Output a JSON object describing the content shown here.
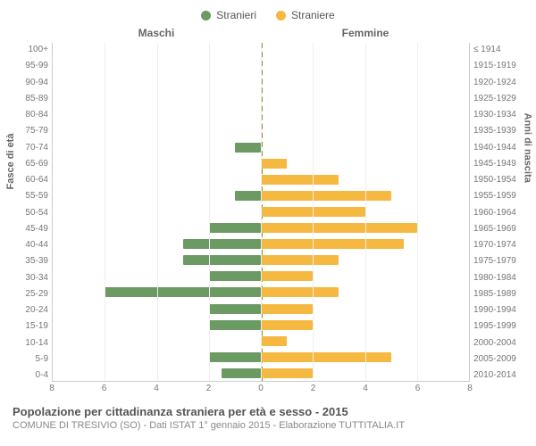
{
  "legend": {
    "m_label": "Stranieri",
    "f_label": "Straniere"
  },
  "colors": {
    "m": "#6b9a62",
    "f": "#f5b840",
    "grid": "#eeeeee",
    "centerline": "#9a8b3a",
    "bg": "#ffffff"
  },
  "headers": {
    "left": "Maschi",
    "right": "Femmine"
  },
  "ylabels": {
    "left": "Fasce di età",
    "right": "Anni di nascita"
  },
  "xaxis": {
    "max": 8,
    "ticks": [
      8,
      6,
      4,
      2,
      0,
      2,
      4,
      6,
      8
    ]
  },
  "bands": [
    {
      "age": "100+",
      "birth": "≤ 1914",
      "m": 0,
      "f": 0
    },
    {
      "age": "95-99",
      "birth": "1915-1919",
      "m": 0,
      "f": 0
    },
    {
      "age": "90-94",
      "birth": "1920-1924",
      "m": 0,
      "f": 0
    },
    {
      "age": "85-89",
      "birth": "1925-1929",
      "m": 0,
      "f": 0
    },
    {
      "age": "80-84",
      "birth": "1930-1934",
      "m": 0,
      "f": 0
    },
    {
      "age": "75-79",
      "birth": "1935-1939",
      "m": 0,
      "f": 0
    },
    {
      "age": "70-74",
      "birth": "1940-1944",
      "m": 1,
      "f": 0
    },
    {
      "age": "65-69",
      "birth": "1945-1949",
      "m": 0,
      "f": 1
    },
    {
      "age": "60-64",
      "birth": "1950-1954",
      "m": 0,
      "f": 3
    },
    {
      "age": "55-59",
      "birth": "1955-1959",
      "m": 1,
      "f": 5
    },
    {
      "age": "50-54",
      "birth": "1960-1964",
      "m": 0,
      "f": 4
    },
    {
      "age": "45-49",
      "birth": "1965-1969",
      "m": 2,
      "f": 6
    },
    {
      "age": "40-44",
      "birth": "1970-1974",
      "m": 3,
      "f": 5.5
    },
    {
      "age": "35-39",
      "birth": "1975-1979",
      "m": 3,
      "f": 3
    },
    {
      "age": "30-34",
      "birth": "1980-1984",
      "m": 2,
      "f": 2
    },
    {
      "age": "25-29",
      "birth": "1985-1989",
      "m": 6,
      "f": 3
    },
    {
      "age": "20-24",
      "birth": "1990-1994",
      "m": 2,
      "f": 2
    },
    {
      "age": "15-19",
      "birth": "1995-1999",
      "m": 2,
      "f": 2
    },
    {
      "age": "10-14",
      "birth": "2000-2004",
      "m": 0,
      "f": 1
    },
    {
      "age": "5-9",
      "birth": "2005-2009",
      "m": 2,
      "f": 5
    },
    {
      "age": "0-4",
      "birth": "2010-2014",
      "m": 1.5,
      "f": 2
    }
  ],
  "caption": {
    "title": "Popolazione per cittadinanza straniera per età e sesso - 2015",
    "sub": "COMUNE DI TRESIVIO (SO) - Dati ISTAT 1° gennaio 2015 - Elaborazione TUTTITALIA.IT"
  }
}
